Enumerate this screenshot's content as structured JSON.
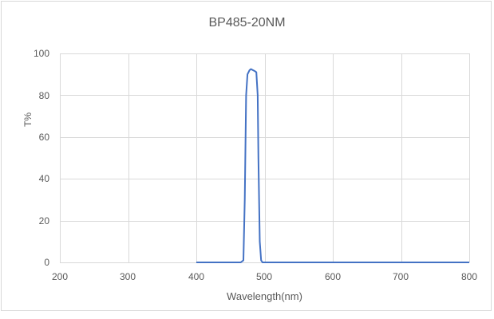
{
  "chart_data": {
    "type": "line",
    "title": "BP485-20NM",
    "xlabel": "Wavelength(nm)",
    "ylabel": "T%",
    "xlim": [
      200,
      800
    ],
    "ylim": [
      0,
      100
    ],
    "x_ticks": [
      "200",
      "300",
      "400",
      "500",
      "600",
      "700",
      "800"
    ],
    "y_ticks": [
      "0",
      "20",
      "40",
      "60",
      "80",
      "100"
    ],
    "grid": true,
    "legend": null,
    "series": [
      {
        "name": "T%",
        "color": "#4472C4",
        "x": [
          400,
          465,
          469,
          471,
          473,
          475,
          478,
          480,
          483,
          486,
          488,
          490,
          491,
          493,
          495,
          497,
          500,
          600,
          700,
          800
        ],
        "y": [
          0,
          0,
          1,
          30,
          80,
          90,
          92,
          92.5,
          92,
          91.5,
          91,
          80,
          50,
          10,
          1,
          0,
          0,
          0,
          0,
          0
        ]
      }
    ]
  },
  "colors": {
    "line": "#4472C4",
    "grid": "#d9d9d9",
    "text": "#595959"
  }
}
